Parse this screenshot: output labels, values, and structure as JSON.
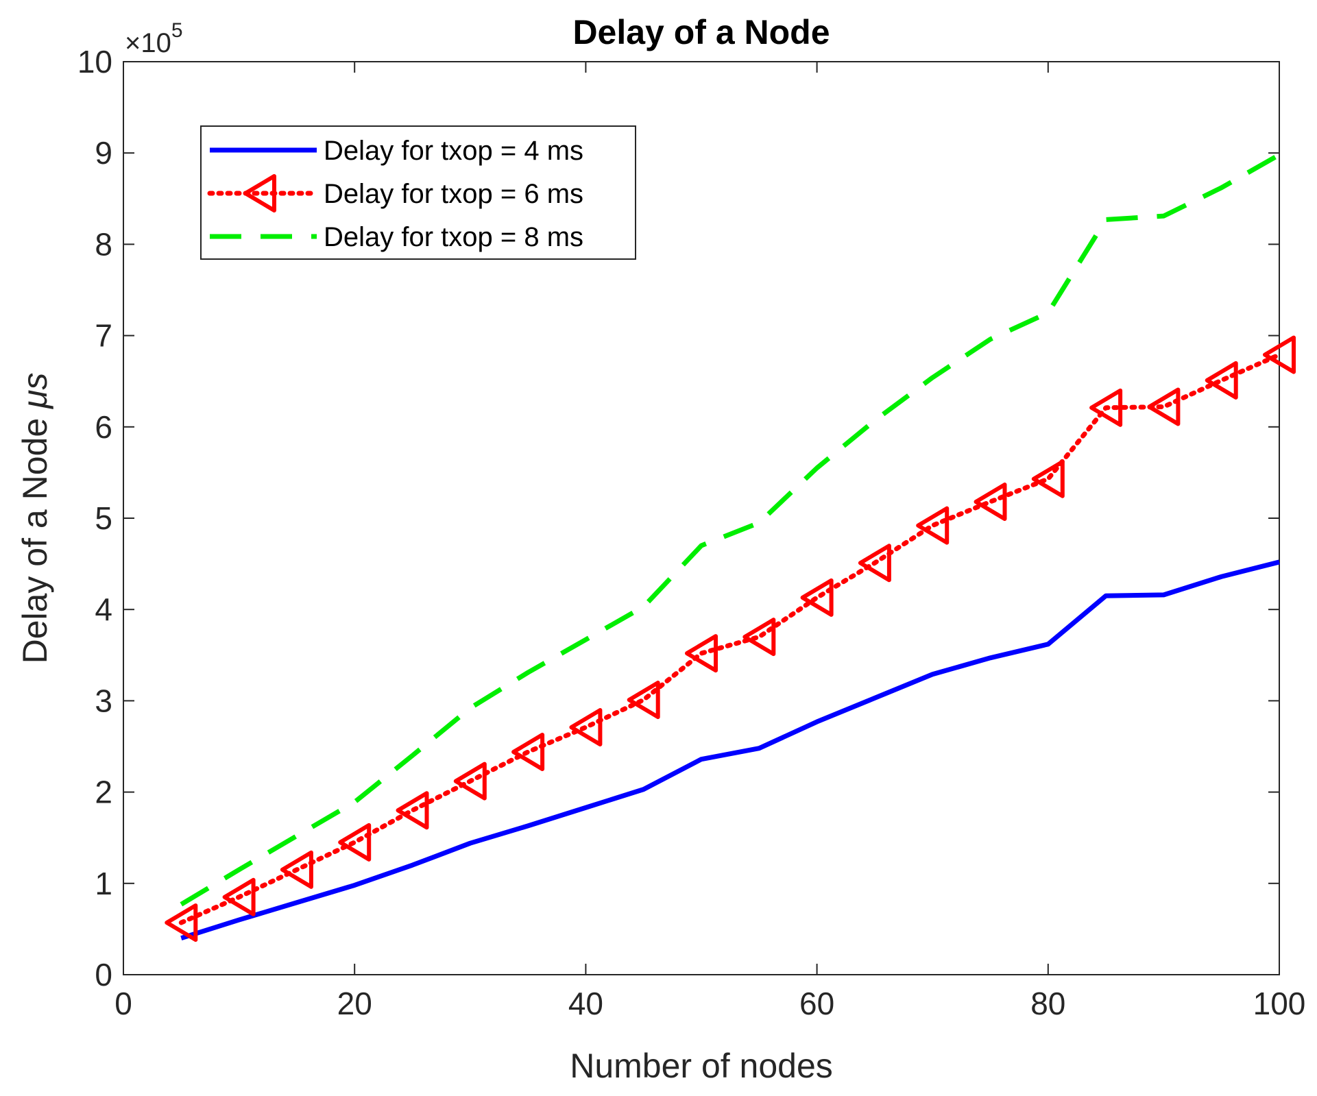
{
  "chart_data": {
    "type": "line",
    "title": "Delay of a Node",
    "xlabel": "Number of nodes",
    "ylabel_main": "Delay of a Node ",
    "ylabel_unit": "μs",
    "y_exponent_prefix": "×10",
    "y_exponent": "5",
    "xlim": [
      0,
      100
    ],
    "ylim": [
      0,
      10
    ],
    "xticks": [
      0,
      20,
      40,
      60,
      80,
      100
    ],
    "yticks": [
      0,
      1,
      2,
      3,
      4,
      5,
      6,
      7,
      8,
      9,
      10
    ],
    "x": [
      5,
      10,
      15,
      20,
      25,
      30,
      35,
      40,
      45,
      50,
      55,
      60,
      65,
      70,
      75,
      80,
      85,
      90,
      95,
      100
    ],
    "series": [
      {
        "name": "Delay for txop = 4 ms",
        "color": "#0000ff",
        "style": "solid",
        "marker": "none",
        "values": [
          0.4,
          0.6,
          0.79,
          0.98,
          1.2,
          1.44,
          1.63,
          1.83,
          2.03,
          2.36,
          2.48,
          2.77,
          3.03,
          3.29,
          3.47,
          3.62,
          4.15,
          4.16,
          4.36,
          4.52
        ]
      },
      {
        "name": "Delay for txop = 6 ms",
        "color": "#ff0000",
        "style": "dotted",
        "marker": "triangle-left",
        "values": [
          0.57,
          0.85,
          1.15,
          1.45,
          1.8,
          2.12,
          2.44,
          2.71,
          3.01,
          3.52,
          3.7,
          4.13,
          4.51,
          4.92,
          5.18,
          5.43,
          6.21,
          6.22,
          6.51,
          6.79
        ]
      },
      {
        "name": "Delay for txop = 8 ms",
        "color": "#00ee00",
        "style": "dashed",
        "marker": "none",
        "values": [
          0.77,
          1.15,
          1.52,
          1.89,
          2.4,
          2.92,
          3.31,
          3.67,
          4.03,
          4.7,
          4.95,
          5.55,
          6.07,
          6.54,
          6.96,
          7.25,
          8.27,
          8.31,
          8.62,
          8.98
        ]
      }
    ],
    "legend": {
      "position": "top-left"
    }
  }
}
